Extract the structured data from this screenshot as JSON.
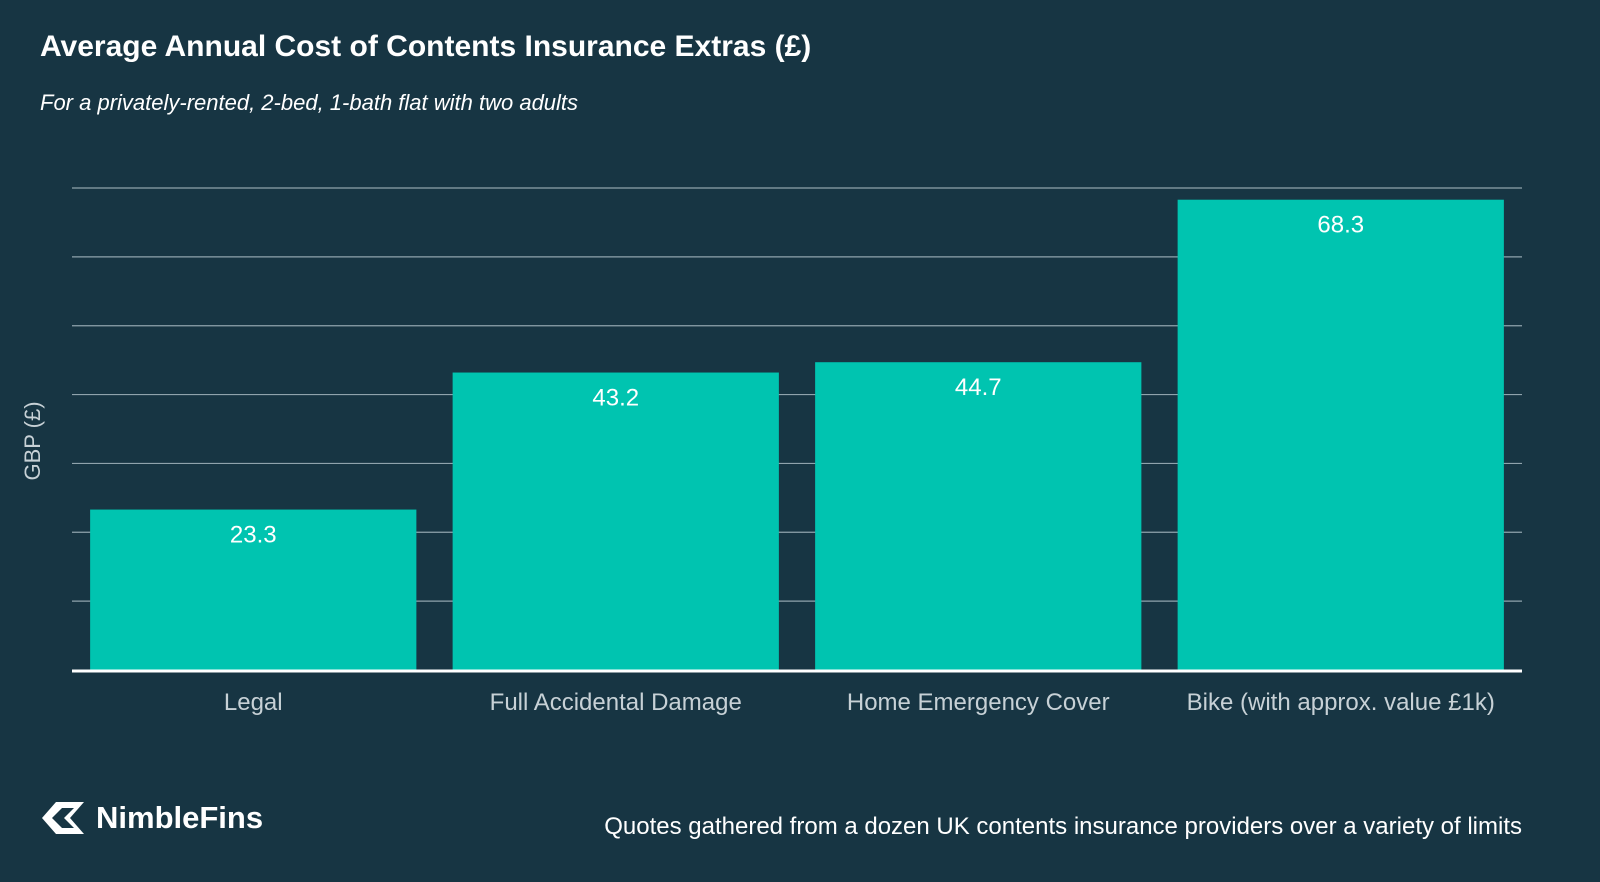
{
  "chart_data": {
    "type": "bar",
    "title": "Average Annual Cost of Contents Insurance Extras (£)",
    "subtitle": "For a privately-rented, 2-bed, 1-bath flat with two adults",
    "categories": [
      "Legal",
      "Full Accidental Damage",
      "Home Emergency Cover",
      "Bike (with approx. value £1k)"
    ],
    "values": [
      23.3,
      43.2,
      44.7,
      68.3
    ],
    "data_labels": [
      "23.3",
      "43.2",
      "44.7",
      "68.3"
    ],
    "xlabel": "",
    "ylabel": "GBP (£)",
    "ylim": [
      0,
      70
    ],
    "gridline_step": 10,
    "grid": true,
    "bar_color": "#00c4b0",
    "gridline_color": "#8fa3ac",
    "label_color": "#ffffff",
    "axis_text_color": "#c7d1d6"
  },
  "branding": {
    "name": "NimbleFins",
    "logo_icon": "nimblefins-arrow-icon"
  },
  "footnote": "Quotes gathered from a dozen UK contents insurance providers over a variety of limits",
  "colors": {
    "background": "#173543",
    "text": "#ffffff"
  }
}
